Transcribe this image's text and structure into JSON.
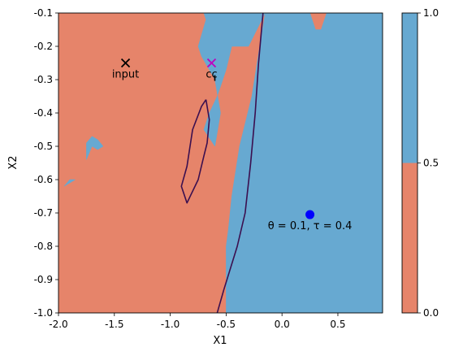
{
  "chart_data": {
    "type": "contourf",
    "xlabel": "X1",
    "ylabel": "X2",
    "xlim": [
      -2.0,
      0.9
    ],
    "ylim": [
      -1.0,
      -0.1
    ],
    "xticks": [
      "-2.0",
      "-1.5",
      "-1.0",
      "-0.5",
      "0.0",
      "0.5"
    ],
    "xtick_values": [
      -2.0,
      -1.5,
      -1.0,
      -0.5,
      0.0,
      0.5
    ],
    "yticks": [
      "-0.1",
      "-0.2",
      "-0.3",
      "-0.4",
      "-0.5",
      "-0.6",
      "-0.7",
      "-0.8",
      "-0.9",
      "-1.0"
    ],
    "ytick_values": [
      -0.1,
      -0.2,
      -0.3,
      -0.4,
      -0.5,
      -0.6,
      -0.7,
      -0.8,
      -0.9,
      -1.0
    ],
    "colors": {
      "class0": "#e6846a",
      "class1": "#67a9d1",
      "boundary": "#3b0f4f",
      "input": "#000000",
      "cc": "#bf00bf",
      "center": "#0000ff"
    },
    "colorbar": {
      "levels": [
        0.0,
        0.5,
        1.0
      ],
      "tick_labels": [
        "0.0",
        "0.5",
        "1.0"
      ],
      "colors": [
        "#e6846a",
        "#67a9d1"
      ]
    },
    "regions_class1": [
      [
        [
          -0.7,
          -0.1
        ],
        [
          -0.3,
          -0.1
        ],
        [
          -0.12,
          -0.1
        ],
        [
          0.25,
          -0.1
        ],
        [
          0.3,
          -0.15
        ],
        [
          0.35,
          -0.15
        ],
        [
          0.4,
          -0.1
        ],
        [
          0.9,
          -0.1
        ],
        [
          0.9,
          -1.0
        ],
        [
          -0.5,
          -1.0
        ],
        [
          -0.5,
          -0.8
        ],
        [
          -0.48,
          -0.75
        ],
        [
          -0.45,
          -0.65
        ],
        [
          -0.38,
          -0.5
        ],
        [
          -0.27,
          -0.35
        ],
        [
          -0.2,
          -0.2
        ],
        [
          -0.15,
          -0.1
        ],
        [
          -0.3,
          -0.2
        ],
        [
          -0.45,
          -0.2
        ],
        [
          -0.5,
          -0.27
        ],
        [
          -0.58,
          -0.35
        ],
        [
          -0.65,
          -0.4
        ],
        [
          -0.7,
          -0.45
        ],
        [
          -0.6,
          -0.5
        ],
        [
          -0.55,
          -0.4
        ],
        [
          -0.6,
          -0.3
        ],
        [
          -0.72,
          -0.23
        ],
        [
          -0.75,
          -0.2
        ],
        [
          -0.68,
          -0.12
        ],
        [
          -0.7,
          -0.1
        ]
      ],
      [
        [
          -1.75,
          -0.54
        ],
        [
          -1.7,
          -0.5
        ],
        [
          -1.65,
          -0.51
        ],
        [
          -1.6,
          -0.5
        ],
        [
          -1.65,
          -0.48
        ],
        [
          -1.7,
          -0.47
        ],
        [
          -1.75,
          -0.49
        ],
        [
          -1.75,
          -0.54
        ]
      ],
      [
        [
          -1.95,
          -0.62
        ],
        [
          -1.9,
          -0.6
        ],
        [
          -1.85,
          -0.6
        ],
        [
          -1.9,
          -0.61
        ],
        [
          -1.95,
          -0.62
        ]
      ]
    ],
    "boundary_lines": [
      [
        [
          -0.17,
          -0.1
        ],
        [
          -0.21,
          -0.25
        ],
        [
          -0.24,
          -0.4
        ],
        [
          -0.28,
          -0.55
        ],
        [
          -0.33,
          -0.7
        ],
        [
          -0.4,
          -0.8
        ],
        [
          -0.52,
          -0.93
        ],
        [
          -0.58,
          -1.0
        ]
      ],
      [
        [
          -0.68,
          -0.36
        ],
        [
          -0.65,
          -0.42
        ],
        [
          -0.67,
          -0.49
        ],
        [
          -0.7,
          -0.53
        ],
        [
          -0.75,
          -0.6
        ],
        [
          -0.85,
          -0.67
        ],
        [
          -0.9,
          -0.62
        ],
        [
          -0.85,
          -0.56
        ],
        [
          -0.8,
          -0.45
        ],
        [
          -0.72,
          -0.38
        ],
        [
          -0.68,
          -0.36
        ]
      ]
    ],
    "points": [
      {
        "name": "input",
        "label": "input",
        "x": -1.4,
        "y": -0.25,
        "marker": "x"
      },
      {
        "name": "cc",
        "label": "cc",
        "x": -0.63,
        "y": -0.25,
        "marker": "x"
      },
      {
        "name": "center",
        "label": "θ = 0.1, τ = 0.4",
        "x": 0.25,
        "y": -0.705,
        "marker": "o"
      }
    ]
  }
}
